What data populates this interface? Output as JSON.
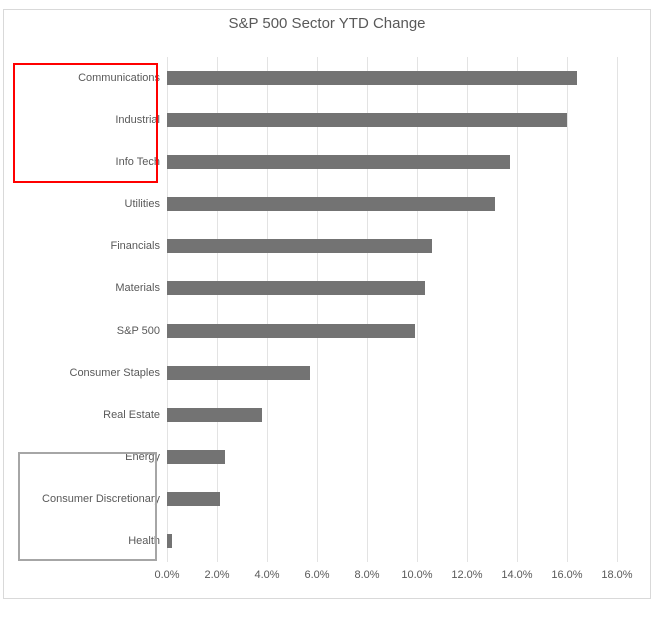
{
  "title": "S&P 500 Sector YTD Change",
  "chart_data": {
    "type": "bar",
    "orientation": "horizontal",
    "title": "S&P 500 Sector YTD Change",
    "categories": [
      "Communications",
      "Industrial",
      "Info Tech",
      "Utilities",
      "Financials",
      "Materials",
      "S&P 500",
      "Consumer Staples",
      "Real Estate",
      "Energy",
      "Consumer Discretionary",
      "Health"
    ],
    "values": [
      16.4,
      16.0,
      13.7,
      13.1,
      10.6,
      10.3,
      9.9,
      5.7,
      3.8,
      2.3,
      2.1,
      0.2
    ],
    "value_unit": "%",
    "xlabel": "",
    "ylabel": "",
    "x_ticks": [
      "0.0%",
      "2.0%",
      "4.0%",
      "6.0%",
      "8.0%",
      "10.0%",
      "12.0%",
      "14.0%",
      "16.0%",
      "18.0%"
    ],
    "xlim": [
      0,
      18
    ],
    "grid": true,
    "legend": "none",
    "bar_color": "#737373",
    "gridline_color": "#e3e3e3",
    "text_color": "#595959"
  },
  "annotations": {
    "red_box": {
      "color": "#ff0000",
      "highlighted_items": [
        "Communications",
        "Industrial",
        "Info Tech"
      ]
    },
    "gray_box": {
      "color": "#a6a6a6",
      "highlighted_items": [
        "Energy",
        "Consumer Discretionary",
        "Health"
      ]
    }
  }
}
